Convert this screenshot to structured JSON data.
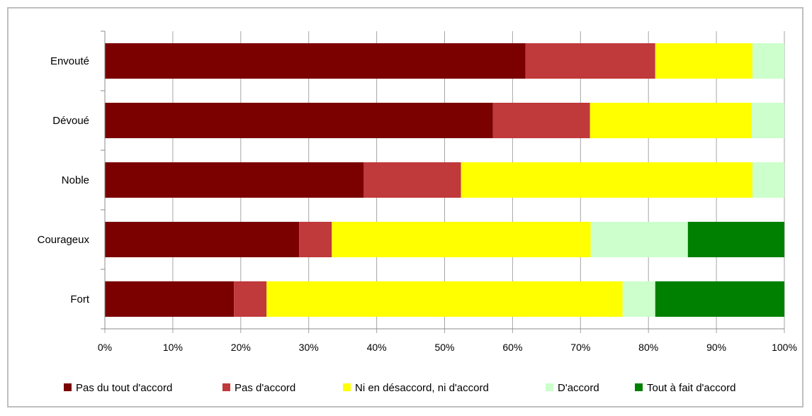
{
  "chart_data": {
    "type": "bar",
    "orientation": "horizontal",
    "stacked": "percent",
    "categories": [
      "Envouté",
      "Dévoué",
      "Noble",
      "Courageux",
      "Fort"
    ],
    "series": [
      {
        "name": "Pas du tout d'accord",
        "color": "#7b0000",
        "values": [
          61.9,
          57.1,
          38.1,
          28.6,
          19.0
        ]
      },
      {
        "name": "Pas d'accord",
        "color": "#c0393b",
        "values": [
          19.1,
          14.3,
          14.3,
          4.8,
          4.8
        ]
      },
      {
        "name": "Ni en désaccord, ni d'accord",
        "color": "#ffff00",
        "values": [
          14.3,
          23.8,
          42.9,
          38.1,
          52.4
        ]
      },
      {
        "name": "D'accord",
        "color": "#ccffcc",
        "values": [
          4.7,
          4.8,
          4.7,
          14.3,
          4.8
        ]
      },
      {
        "name": "Tout à fait d'accord",
        "color": "#008000",
        "values": [
          0,
          0,
          0,
          14.2,
          19.0
        ]
      }
    ],
    "xlim": [
      0,
      100
    ],
    "x_ticks": [
      "0%",
      "10%",
      "20%",
      "30%",
      "40%",
      "50%",
      "60%",
      "70%",
      "80%",
      "90%",
      "100%"
    ],
    "grid": true,
    "legend": "bottom",
    "title": "",
    "xlabel": "",
    "ylabel": ""
  }
}
